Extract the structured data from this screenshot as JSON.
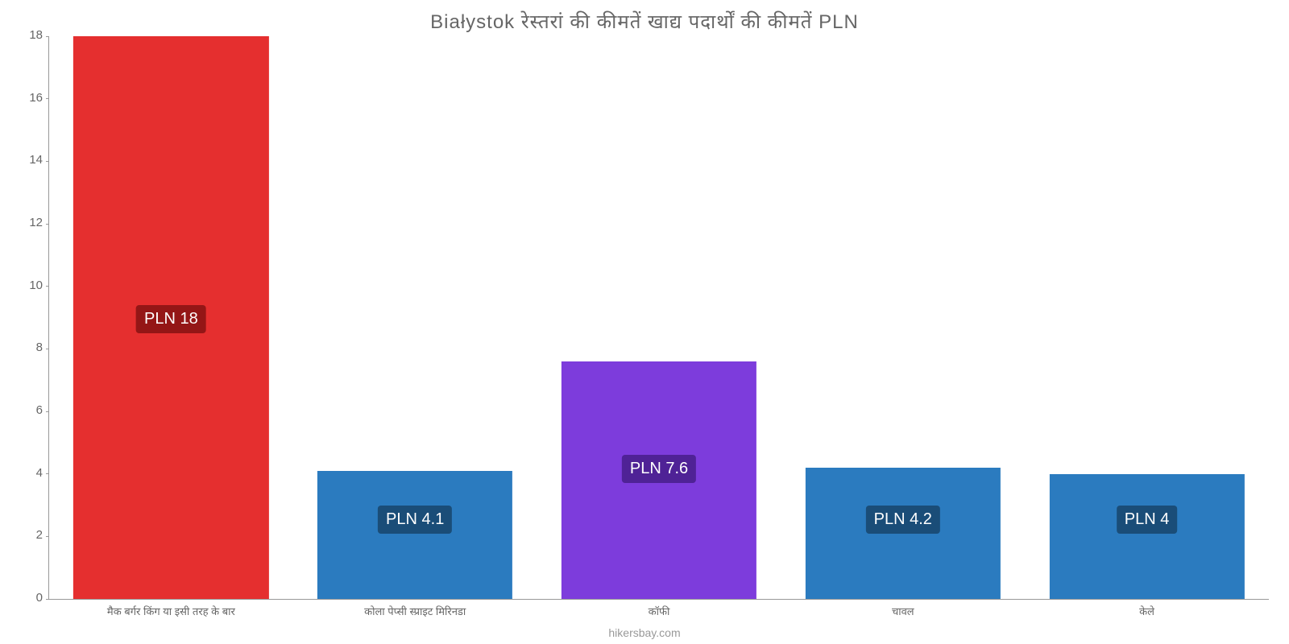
{
  "chart": {
    "type": "bar",
    "title": "Białystok रेस्तरां की कीमतें खाद्य पदार्थों की कीमतें PLN",
    "title_fontsize": 24,
    "title_color": "#666666",
    "background_color": "#ffffff",
    "axis_color": "#999999",
    "tick_label_color": "#666666",
    "tick_label_fontsize": 15,
    "xlabel_fontsize": 13,
    "ylim": [
      0,
      18
    ],
    "yticks": [
      0,
      2,
      4,
      6,
      8,
      10,
      12,
      14,
      16,
      18
    ],
    "bar_width_pct": 80,
    "categories": [
      "मैक बर्गर किंग या इसी तरह के बार",
      "कोला पेप्सी स्प्राइट मिरिनडा",
      "कॉफी",
      "चावल",
      "केले"
    ],
    "values": [
      18,
      4.1,
      7.6,
      4.2,
      4
    ],
    "value_labels": [
      "PLN 18",
      "PLN 4.1",
      "PLN 7.6",
      "PLN 4.2",
      "PLN 4"
    ],
    "bar_colors": [
      "#e52f2f",
      "#2b7bbf",
      "#7d3cdc",
      "#2b7bbf",
      "#2b7bbf"
    ],
    "badge_colors": [
      "#941616",
      "#1a4d78",
      "#4f2296",
      "#1a4d78",
      "#1a4d78"
    ],
    "badge_positions_y": [
      9.4,
      3.0,
      4.6,
      3.0,
      3.0
    ],
    "badge_fontsize": 20,
    "footer": "hikersbay.com",
    "footer_color": "#999999",
    "footer_fontsize": 14
  }
}
